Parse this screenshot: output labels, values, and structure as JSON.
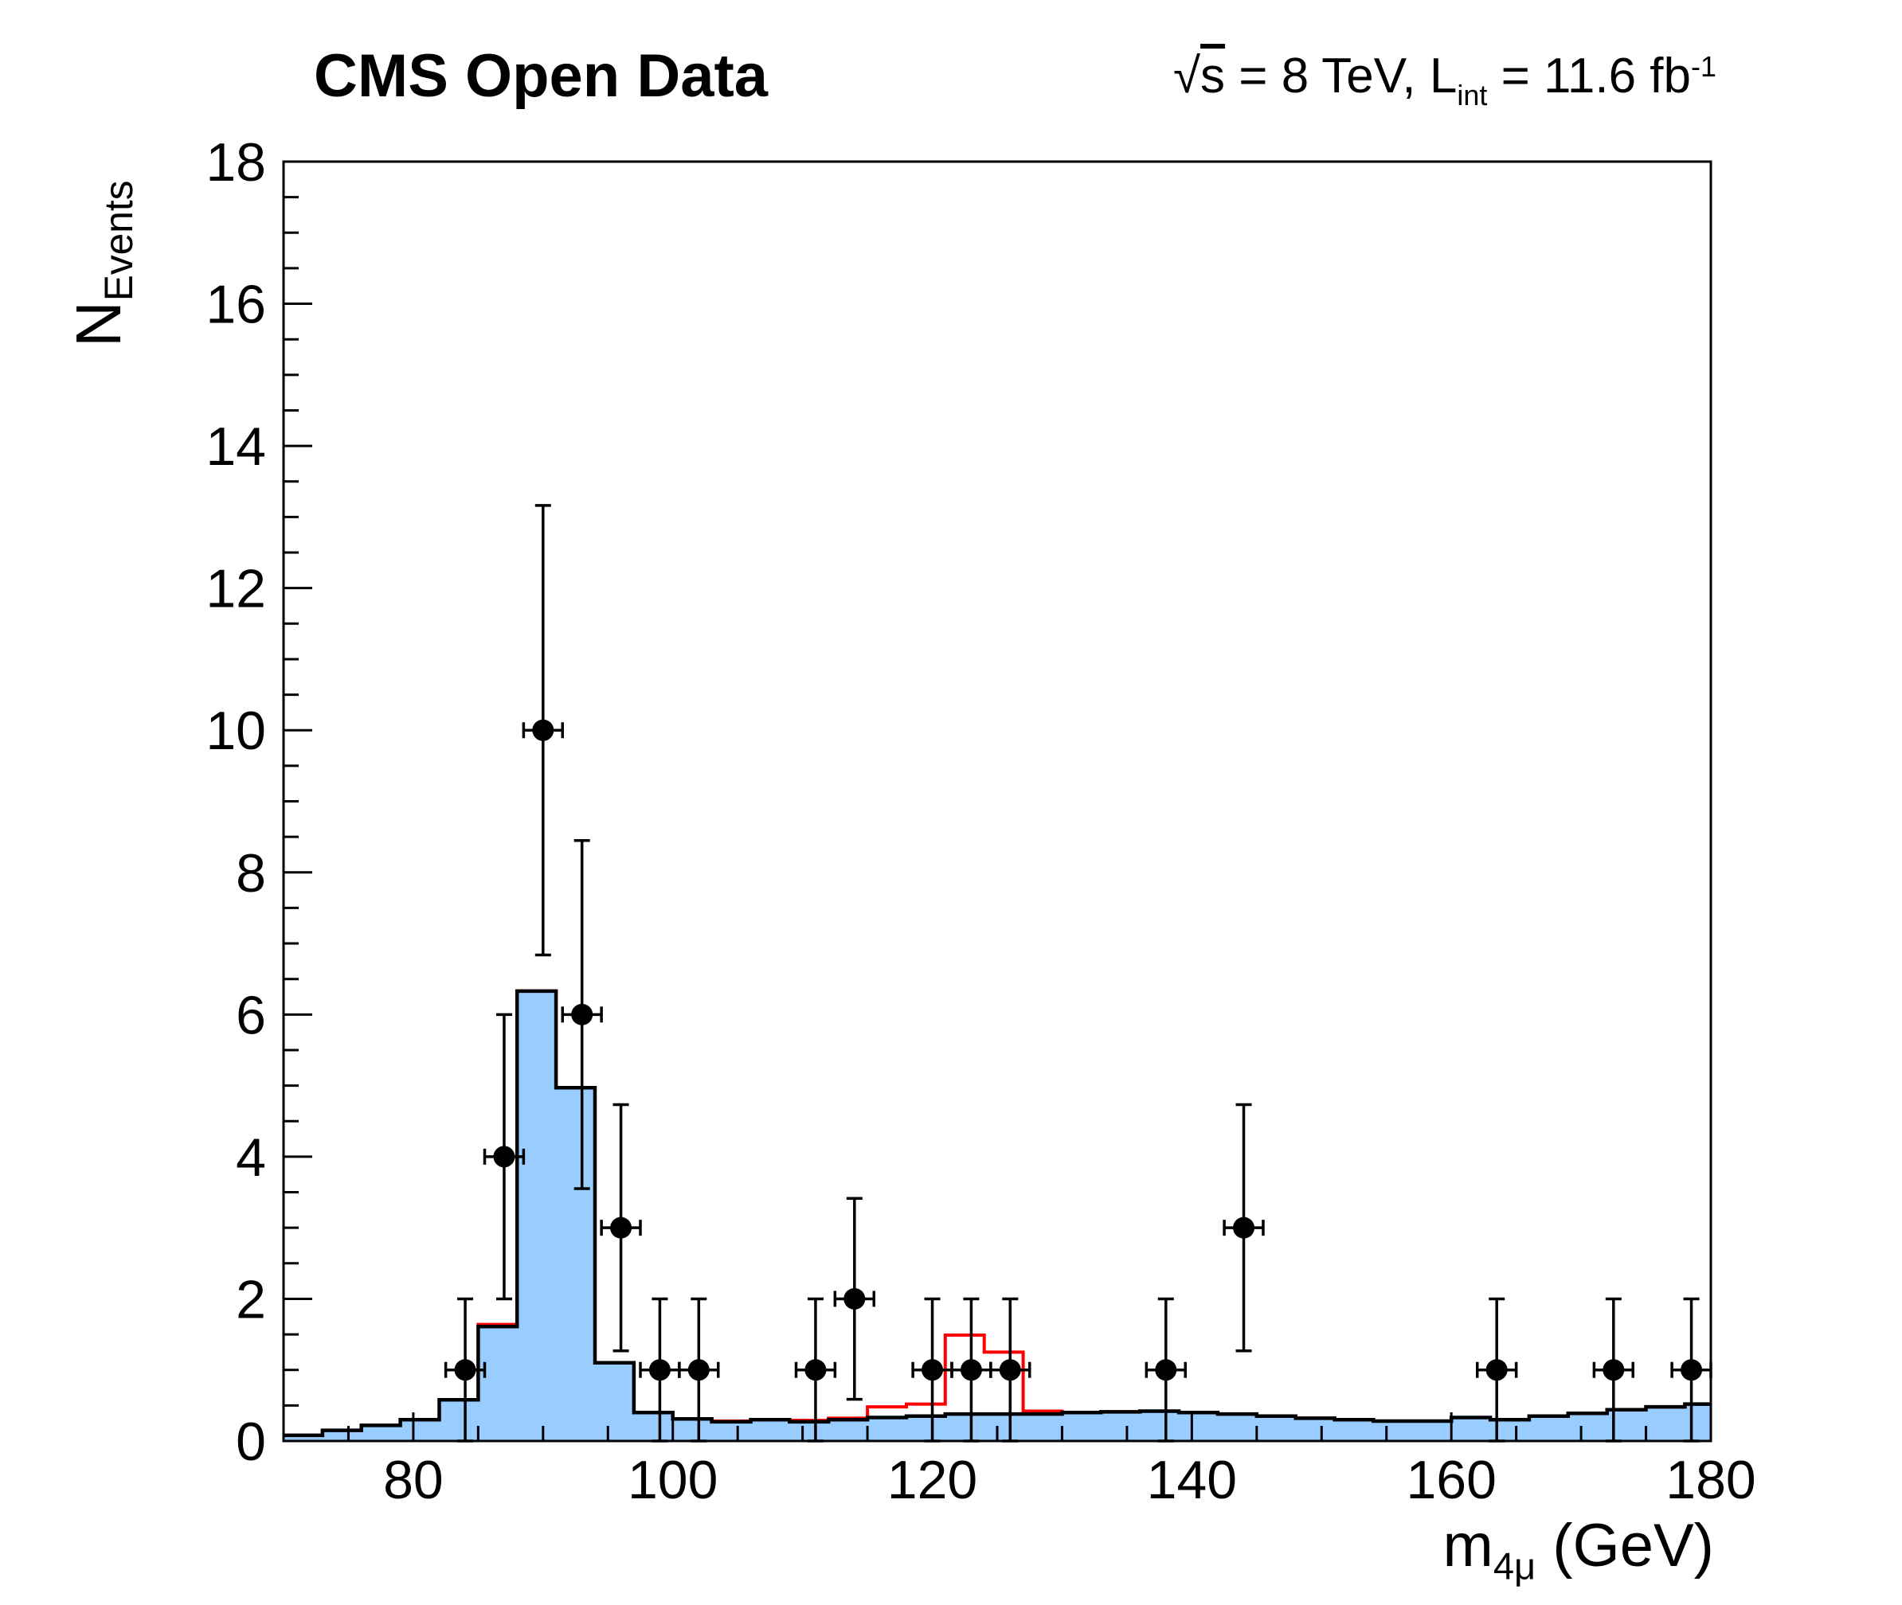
{
  "header": {
    "title": "CMS Open Data",
    "lumi": {
      "sqrt_sign": "√",
      "sqrt_arg": "s",
      "mid": " = 8 TeV, L",
      "sub": "int",
      "mid2": " = 11.6 fb",
      "sup": "-1"
    }
  },
  "axes": {
    "y_title_main": "N",
    "y_title_sub": "Events",
    "x_title_main": "m",
    "x_title_sub": "4μ",
    "x_title_unit": " (GeV)"
  },
  "colors": {
    "background_fill": "#99ccff",
    "histogram_outline": "#000000",
    "signal_line": "#ff0000",
    "data_marker": "#000000",
    "frame": "#000000",
    "canvas": "#ffffff"
  },
  "chart_data": {
    "type": "bar",
    "subtype": "hep-histogram-with-data-points",
    "title": "CMS Open Data",
    "annotation": "√s = 8 TeV, L_int = 11.6 fb⁻¹",
    "xlabel": "m_4μ (GeV)",
    "ylabel": "N_Events",
    "xlim": [
      70,
      180
    ],
    "ylim": [
      0,
      18
    ],
    "grid": false,
    "legend": "none",
    "bin_width_gev": 3,
    "bin_start_gev": 70,
    "bin_count": 37,
    "xticks": {
      "major": [
        80,
        100,
        120,
        140,
        160,
        180
      ],
      "minor_step": 5
    },
    "yticks": {
      "major": [
        0,
        2,
        4,
        6,
        8,
        10,
        12,
        14,
        16,
        18
      ],
      "minor_step": 0.5
    },
    "series": [
      {
        "name": "background-mc",
        "style": "filled-histogram",
        "color": "#99ccff",
        "values": [
          0.08,
          0.15,
          0.22,
          0.3,
          0.58,
          1.61,
          6.33,
          4.97,
          1.1,
          0.4,
          0.31,
          0.27,
          0.3,
          0.27,
          0.3,
          0.33,
          0.35,
          0.38,
          0.38,
          0.38,
          0.4,
          0.41,
          0.42,
          0.4,
          0.38,
          0.35,
          0.32,
          0.3,
          0.28,
          0.28,
          0.33,
          0.3,
          0.35,
          0.39,
          0.44,
          0.48,
          0.52
        ]
      },
      {
        "name": "signal-plus-background-mc",
        "style": "step-line",
        "color": "#ff0000",
        "values": [
          0.08,
          0.15,
          0.22,
          0.3,
          0.58,
          1.64,
          6.33,
          4.97,
          1.1,
          0.4,
          0.31,
          0.28,
          0.3,
          0.29,
          0.32,
          0.48,
          0.52,
          1.49,
          1.25,
          0.42,
          0.4,
          0.41,
          0.42,
          0.4,
          0.38,
          0.35,
          0.32,
          0.3,
          0.28,
          0.28,
          0.33,
          0.3,
          0.35,
          0.39,
          0.44,
          0.48,
          0.52
        ]
      },
      {
        "name": "data",
        "style": "scatter-errorbar",
        "color": "#000000",
        "x_halfwidth_gev": 1.5,
        "points": [
          {
            "m": 84.0,
            "n": 1,
            "err": 1.0
          },
          {
            "m": 87.0,
            "n": 4,
            "err": 2.0
          },
          {
            "m": 90.0,
            "n": 10,
            "err": 3.162
          },
          {
            "m": 93.0,
            "n": 6,
            "err": 2.449
          },
          {
            "m": 96.0,
            "n": 3,
            "err": 1.732
          },
          {
            "m": 99.0,
            "n": 1,
            "err": 1.0
          },
          {
            "m": 102.0,
            "n": 1,
            "err": 1.0
          },
          {
            "m": 111.0,
            "n": 1,
            "err": 1.0
          },
          {
            "m": 114.0,
            "n": 2,
            "err": 1.414
          },
          {
            "m": 120.0,
            "n": 1,
            "err": 1.0
          },
          {
            "m": 123.0,
            "n": 1,
            "err": 1.0
          },
          {
            "m": 126.0,
            "n": 1,
            "err": 1.0
          },
          {
            "m": 138.0,
            "n": 1,
            "err": 1.0
          },
          {
            "m": 144.0,
            "n": 3,
            "err": 1.732
          },
          {
            "m": 163.5,
            "n": 1,
            "err": 1.0
          },
          {
            "m": 172.5,
            "n": 1,
            "err": 1.0
          },
          {
            "m": 178.5,
            "n": 1,
            "err": 1.0
          }
        ]
      }
    ]
  }
}
